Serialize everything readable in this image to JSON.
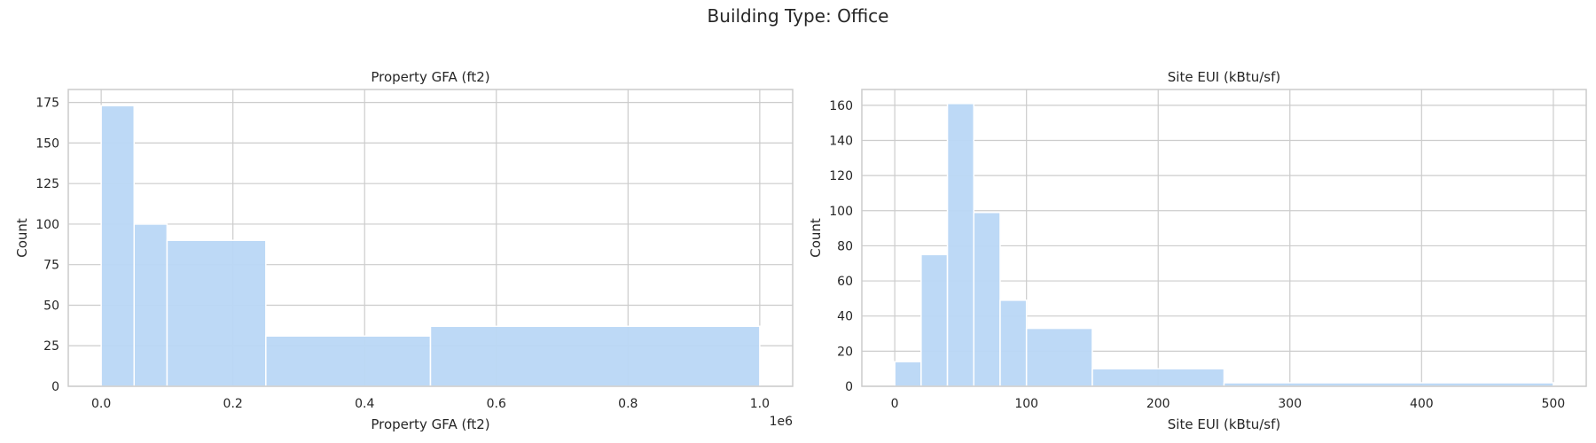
{
  "figure": {
    "suptitle": "Building Type: Office"
  },
  "colors": {
    "bar": "#b9d7f5",
    "bar_edge": "#ffffff",
    "grid": "#cccccc",
    "axis": "#cccccc",
    "text": "#262626"
  },
  "chart_data": [
    {
      "type": "bar",
      "title": "Property GFA (ft2)",
      "xlabel": "Property GFA (ft2)",
      "ylabel": "Count",
      "x_offset_label": "1e6",
      "xlim": [
        -0.05,
        1.05
      ],
      "ylim": [
        0,
        183
      ],
      "xticks": [
        0.0,
        0.2,
        0.4,
        0.6,
        0.8,
        1.0
      ],
      "xtick_labels": [
        "0.0",
        "0.2",
        "0.4",
        "0.6",
        "0.8",
        "1.0"
      ],
      "yticks": [
        0,
        25,
        50,
        75,
        100,
        125,
        150,
        175
      ],
      "bins": [
        {
          "start": 0.0,
          "end": 0.05,
          "count": 173
        },
        {
          "start": 0.05,
          "end": 0.1,
          "count": 100
        },
        {
          "start": 0.1,
          "end": 0.25,
          "count": 90
        },
        {
          "start": 0.25,
          "end": 0.5,
          "count": 31
        },
        {
          "start": 0.5,
          "end": 1.0,
          "count": 37
        }
      ],
      "grid": true
    },
    {
      "type": "bar",
      "title": "Site EUI (kBtu/sf)",
      "xlabel": "Site EUI (kBtu/sf)",
      "ylabel": "Count",
      "xlim": [
        -25,
        525
      ],
      "ylim": [
        0,
        169
      ],
      "xticks": [
        0,
        100,
        200,
        300,
        400,
        500
      ],
      "xtick_labels": [
        "0",
        "100",
        "200",
        "300",
        "400",
        "500"
      ],
      "yticks": [
        0,
        20,
        40,
        60,
        80,
        100,
        120,
        140,
        160
      ],
      "bins": [
        {
          "start": 0,
          "end": 20,
          "count": 14
        },
        {
          "start": 20,
          "end": 40,
          "count": 75
        },
        {
          "start": 40,
          "end": 60,
          "count": 161
        },
        {
          "start": 60,
          "end": 80,
          "count": 99
        },
        {
          "start": 80,
          "end": 100,
          "count": 49
        },
        {
          "start": 100,
          "end": 150,
          "count": 33
        },
        {
          "start": 150,
          "end": 250,
          "count": 10
        },
        {
          "start": 250,
          "end": 500,
          "count": 2
        }
      ],
      "grid": true
    }
  ]
}
